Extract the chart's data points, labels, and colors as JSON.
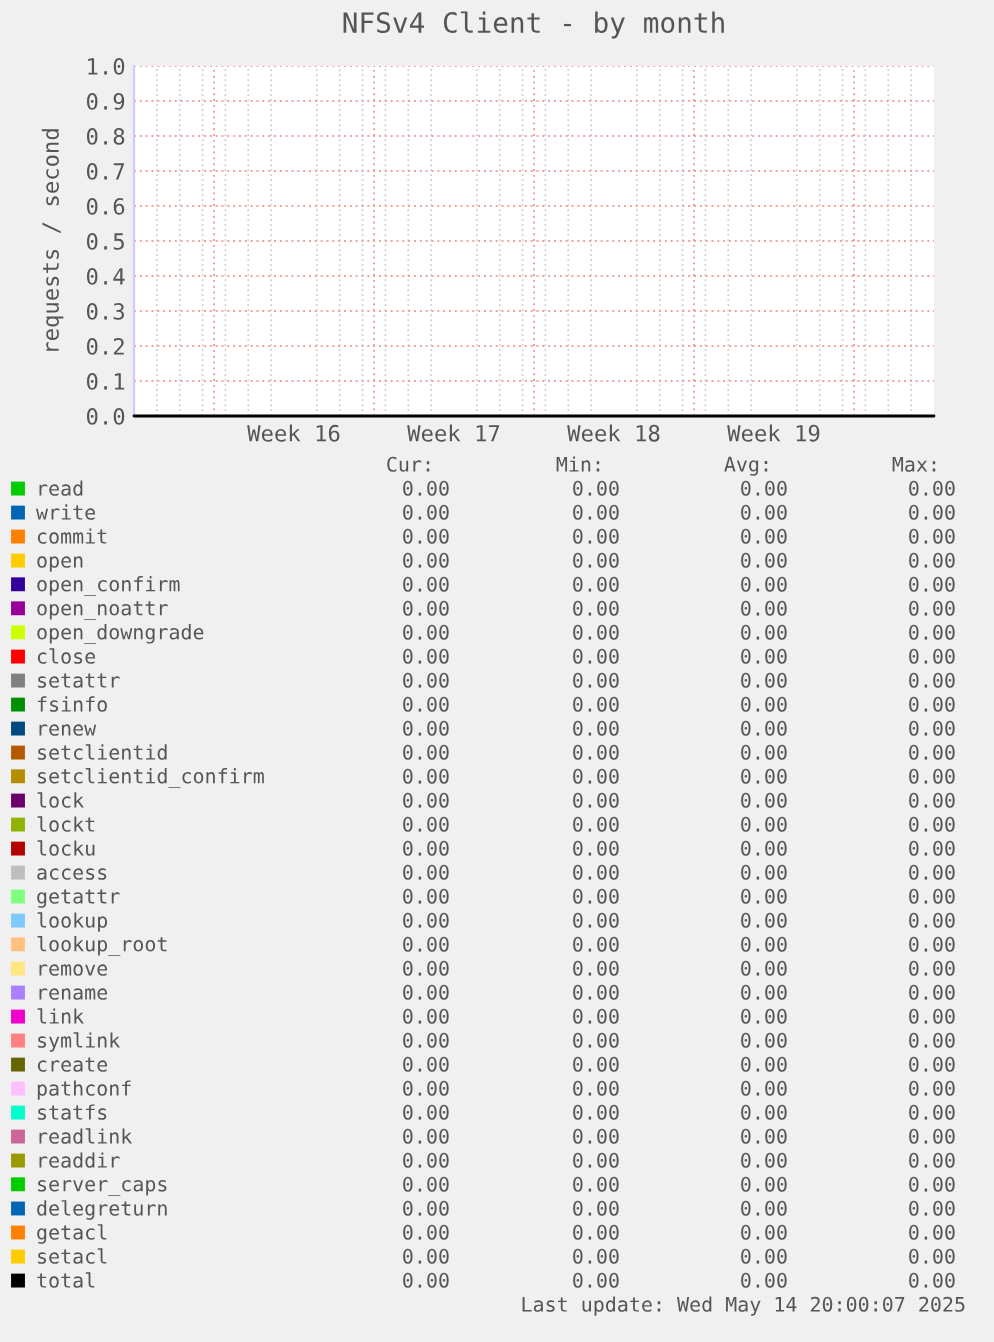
{
  "chart_data": {
    "type": "line",
    "title": "NFSv4 Client - by month",
    "ylabel": "requests / second",
    "categories": [
      null,
      "Week 16",
      "Week 17",
      "Week 18",
      "Week 19",
      null
    ],
    "ylim": [
      0,
      1
    ],
    "yticks": [
      {
        "value": 0,
        "label": "0.0"
      },
      {
        "value": 0.1,
        "label": "0.1"
      },
      {
        "value": 0.2,
        "label": "0.2"
      },
      {
        "value": 0.3,
        "label": "0.3"
      },
      {
        "value": 0.4,
        "label": "0.4"
      },
      {
        "value": 0.5,
        "label": "0.5"
      },
      {
        "value": 0.6,
        "label": "0.6"
      },
      {
        "value": 0.7,
        "label": "0.7"
      },
      {
        "value": 0.8,
        "label": "0.8"
      },
      {
        "value": 0.9,
        "label": "0.9"
      },
      {
        "value": 1,
        "label": "1.0"
      }
    ],
    "grid": true,
    "legend": "bottom",
    "series": [
      {
        "name": "read",
        "color": "#00cc00",
        "values": [
          null,
          null,
          null,
          null,
          null,
          null
        ]
      },
      {
        "name": "write",
        "color": "#0066b3",
        "values": [
          null,
          null,
          null,
          null,
          null,
          null
        ]
      },
      {
        "name": "commit",
        "color": "#ff8000",
        "values": [
          null,
          null,
          null,
          null,
          null,
          null
        ]
      },
      {
        "name": "open",
        "color": "#ffcc00",
        "values": [
          null,
          null,
          null,
          null,
          null,
          null
        ]
      },
      {
        "name": "open_confirm",
        "color": "#330099",
        "values": [
          null,
          null,
          null,
          null,
          null,
          null
        ]
      },
      {
        "name": "open_noattr",
        "color": "#990099",
        "values": [
          null,
          null,
          null,
          null,
          null,
          null
        ]
      },
      {
        "name": "open_downgrade",
        "color": "#ccff00",
        "values": [
          null,
          null,
          null,
          null,
          null,
          null
        ]
      },
      {
        "name": "close",
        "color": "#ff0000",
        "values": [
          null,
          null,
          null,
          null,
          null,
          null
        ]
      },
      {
        "name": "setattr",
        "color": "#808080",
        "values": [
          null,
          null,
          null,
          null,
          null,
          null
        ]
      },
      {
        "name": "fsinfo",
        "color": "#008f00",
        "values": [
          null,
          null,
          null,
          null,
          null,
          null
        ]
      },
      {
        "name": "renew",
        "color": "#00487d",
        "values": [
          null,
          null,
          null,
          null,
          null,
          null
        ]
      },
      {
        "name": "setclientid",
        "color": "#b35a00",
        "values": [
          null,
          null,
          null,
          null,
          null,
          null
        ]
      },
      {
        "name": "setclientid_confirm",
        "color": "#b38f00",
        "values": [
          null,
          null,
          null,
          null,
          null,
          null
        ]
      },
      {
        "name": "lock",
        "color": "#6b006b",
        "values": [
          null,
          null,
          null,
          null,
          null,
          null
        ]
      },
      {
        "name": "lockt",
        "color": "#8fb300",
        "values": [
          null,
          null,
          null,
          null,
          null,
          null
        ]
      },
      {
        "name": "locku",
        "color": "#b30000",
        "values": [
          null,
          null,
          null,
          null,
          null,
          null
        ]
      },
      {
        "name": "access",
        "color": "#bebebe",
        "values": [
          null,
          null,
          null,
          null,
          null,
          null
        ]
      },
      {
        "name": "getattr",
        "color": "#80ff80",
        "values": [
          null,
          null,
          null,
          null,
          null,
          null
        ]
      },
      {
        "name": "lookup",
        "color": "#80c9ff",
        "values": [
          null,
          null,
          null,
          null,
          null,
          null
        ]
      },
      {
        "name": "lookup_root",
        "color": "#ffc080",
        "values": [
          null,
          null,
          null,
          null,
          null,
          null
        ]
      },
      {
        "name": "remove",
        "color": "#ffe680",
        "values": [
          null,
          null,
          null,
          null,
          null,
          null
        ]
      },
      {
        "name": "rename",
        "color": "#aa80ff",
        "values": [
          null,
          null,
          null,
          null,
          null,
          null
        ]
      },
      {
        "name": "link",
        "color": "#ee00cc",
        "values": [
          null,
          null,
          null,
          null,
          null,
          null
        ]
      },
      {
        "name": "symlink",
        "color": "#ff8080",
        "values": [
          null,
          null,
          null,
          null,
          null,
          null
        ]
      },
      {
        "name": "create",
        "color": "#666600",
        "values": [
          null,
          null,
          null,
          null,
          null,
          null
        ]
      },
      {
        "name": "pathconf",
        "color": "#ffbfff",
        "values": [
          null,
          null,
          null,
          null,
          null,
          null
        ]
      },
      {
        "name": "statfs",
        "color": "#00ffcc",
        "values": [
          null,
          null,
          null,
          null,
          null,
          null
        ]
      },
      {
        "name": "readlink",
        "color": "#cc6699",
        "values": [
          null,
          null,
          null,
          null,
          null,
          null
        ]
      },
      {
        "name": "readdir",
        "color": "#999900",
        "values": [
          null,
          null,
          null,
          null,
          null,
          null
        ]
      },
      {
        "name": "server_caps",
        "color": "#00cc00",
        "values": [
          null,
          null,
          null,
          null,
          null,
          null
        ]
      },
      {
        "name": "delegreturn",
        "color": "#0066b3",
        "values": [
          null,
          null,
          null,
          null,
          null,
          null
        ]
      },
      {
        "name": "getacl",
        "color": "#ff8000",
        "values": [
          null,
          null,
          null,
          null,
          null,
          null
        ]
      },
      {
        "name": "setacl",
        "color": "#ffcc00",
        "values": [
          null,
          null,
          null,
          null,
          null,
          null
        ]
      },
      {
        "name": "total",
        "color": "#000000",
        "values": [
          0,
          0,
          0,
          0,
          0,
          0
        ]
      }
    ],
    "annotations": [
      "Cur:",
      "Min:",
      "Avg:",
      "Max:",
      "0.00",
      "0.00",
      "0.00",
      "0.00",
      "0.00",
      "0.00",
      "0.00",
      "0.00",
      "0.00",
      "0.00",
      "0.00",
      "0.00",
      "0.00",
      "0.00",
      "0.00",
      "0.00",
      "0.00",
      "0.00",
      "0.00",
      "0.00",
      "0.00",
      "0.00",
      "0.00",
      "0.00",
      "0.00",
      "0.00",
      "0.00",
      "0.00",
      "0.00",
      "0.00",
      "0.00",
      "0.00",
      "0.00",
      "0.00",
      "0.00",
      "0.00",
      "0.00",
      "0.00",
      "0.00",
      "0.00",
      "0.00",
      "0.00",
      "0.00",
      "0.00",
      "0.00",
      "0.00",
      "0.00",
      "0.00",
      "0.00",
      "0.00",
      "0.00",
      "0.00",
      "0.00",
      "0.00",
      "0.00",
      "0.00",
      "0.00",
      "0.00",
      "0.00",
      "0.00",
      "0.00",
      "0.00",
      "0.00",
      "0.00",
      "0.00",
      "0.00",
      "0.00",
      "0.00",
      "0.00",
      "0.00",
      "0.00",
      "0.00",
      "0.00",
      "0.00",
      "0.00",
      "0.00",
      "0.00",
      "0.00",
      "0.00",
      "0.00",
      "0.00",
      "0.00",
      "0.00",
      "0.00",
      "0.00",
      "0.00",
      "0.00",
      "0.00",
      "0.00",
      "0.00",
      "0.00",
      "0.00",
      "0.00",
      "0.00",
      "0.00",
      "0.00",
      "0.00",
      "0.00",
      "0.00",
      "0.00",
      "0.00",
      "0.00",
      "0.00",
      "0.00",
      "0.00",
      "0.00",
      "0.00",
      "0.00",
      "0.00",
      "0.00",
      "0.00",
      "0.00",
      "0.00",
      "0.00",
      "0.00",
      "0.00",
      "0.00",
      "0.00",
      "0.00",
      "0.00",
      "0.00",
      "0.00",
      "0.00",
      "0.00",
      "0.00",
      "0.00",
      "0.00",
      "0.00",
      "0.00",
      "0.00",
      "0.00",
      "0.00",
      "0.00",
      "0.00",
      "0.00",
      "0.00",
      "Last update: Wed May 14 20:00:07 2025"
    ]
  }
}
